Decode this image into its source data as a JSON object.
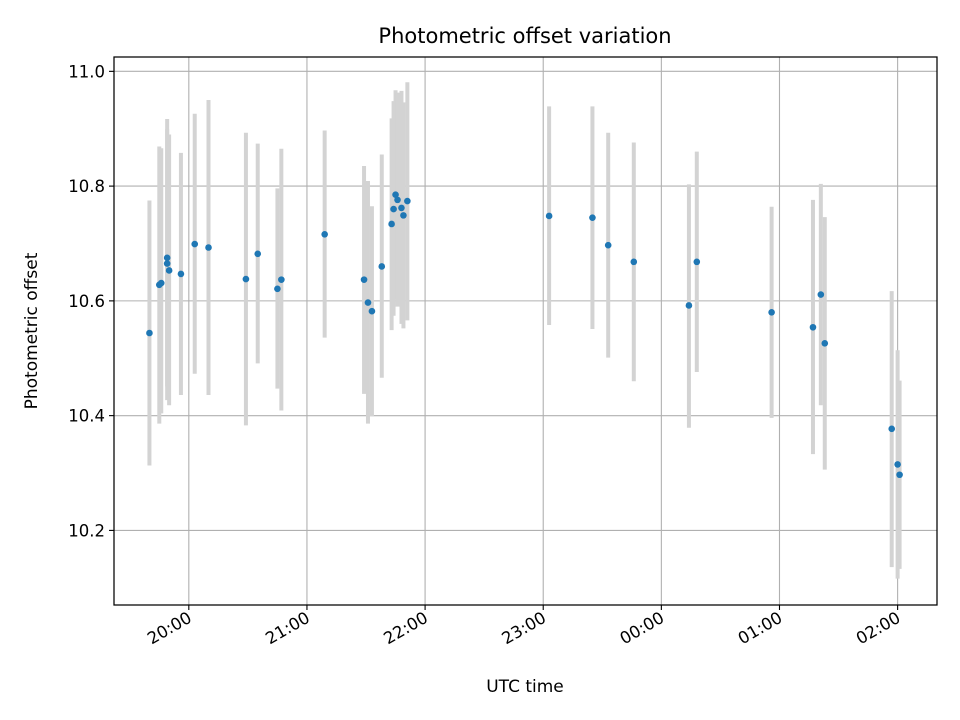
{
  "chart_data": {
    "type": "scatter",
    "title": "Photometric offset variation",
    "xlabel": "UTC time",
    "ylabel": "Photometric offset",
    "x_axis": {
      "kind": "time",
      "start": "2023-01-01T19:22",
      "end": "2023-01-02T02:20"
    },
    "ylim": [
      10.07,
      11.025
    ],
    "grid": true,
    "x_ticks": [
      {
        "t": "2023-01-01T20:00",
        "label": "20:00"
      },
      {
        "t": "2023-01-01T21:00",
        "label": "21:00"
      },
      {
        "t": "2023-01-01T22:00",
        "label": "22:00"
      },
      {
        "t": "2023-01-01T23:00",
        "label": "23:00"
      },
      {
        "t": "2023-01-02T00:00",
        "label": "00:00"
      },
      {
        "t": "2023-01-02T01:00",
        "label": "01:00"
      },
      {
        "t": "2023-01-02T02:00",
        "label": "02:00"
      }
    ],
    "y_ticks": [
      {
        "v": 10.2,
        "label": "10.2"
      },
      {
        "v": 10.4,
        "label": "10.4"
      },
      {
        "v": 10.6,
        "label": "10.6"
      },
      {
        "v": 10.8,
        "label": "10.8"
      },
      {
        "v": 11.0,
        "label": "11.0"
      }
    ],
    "marker_color": "#1f77b4",
    "errorbar_color": "#d3d3d3",
    "points": [
      {
        "t": "2023-01-01T19:40",
        "y": 10.544,
        "lo": 10.313,
        "hi": 10.775
      },
      {
        "t": "2023-01-01T19:45",
        "y": 10.628,
        "lo": 10.386,
        "hi": 10.869
      },
      {
        "t": "2023-01-01T19:46",
        "y": 10.631,
        "lo": 10.404,
        "hi": 10.866
      },
      {
        "t": "2023-01-01T19:49",
        "y": 10.665,
        "lo": 10.427,
        "hi": 10.899
      },
      {
        "t": "2023-01-01T19:49",
        "y": 10.675,
        "lo": 10.451,
        "hi": 10.917
      },
      {
        "t": "2023-01-01T19:50",
        "y": 10.653,
        "lo": 10.418,
        "hi": 10.89
      },
      {
        "t": "2023-01-01T19:56",
        "y": 10.647,
        "lo": 10.436,
        "hi": 10.858
      },
      {
        "t": "2023-01-01T20:03",
        "y": 10.699,
        "lo": 10.473,
        "hi": 10.926
      },
      {
        "t": "2023-01-01T20:10",
        "y": 10.693,
        "lo": 10.436,
        "hi": 10.95
      },
      {
        "t": "2023-01-01T20:29",
        "y": 10.638,
        "lo": 10.383,
        "hi": 10.893
      },
      {
        "t": "2023-01-01T20:35",
        "y": 10.682,
        "lo": 10.491,
        "hi": 10.874
      },
      {
        "t": "2023-01-01T20:45",
        "y": 10.621,
        "lo": 10.447,
        "hi": 10.796
      },
      {
        "t": "2023-01-01T20:47",
        "y": 10.637,
        "lo": 10.409,
        "hi": 10.865
      },
      {
        "t": "2023-01-01T21:09",
        "y": 10.716,
        "lo": 10.536,
        "hi": 10.897
      },
      {
        "t": "2023-01-01T21:29",
        "y": 10.637,
        "lo": 10.438,
        "hi": 10.835
      },
      {
        "t": "2023-01-01T21:31",
        "y": 10.597,
        "lo": 10.386,
        "hi": 10.809
      },
      {
        "t": "2023-01-01T21:33",
        "y": 10.582,
        "lo": 10.399,
        "hi": 10.765
      },
      {
        "t": "2023-01-01T21:38",
        "y": 10.66,
        "lo": 10.466,
        "hi": 10.855
      },
      {
        "t": "2023-01-01T21:43",
        "y": 10.734,
        "lo": 10.549,
        "hi": 10.918
      },
      {
        "t": "2023-01-01T21:44",
        "y": 10.76,
        "lo": 10.574,
        "hi": 10.948
      },
      {
        "t": "2023-01-01T21:45",
        "y": 10.785,
        "lo": 10.603,
        "hi": 10.967
      },
      {
        "t": "2023-01-01T21:46",
        "y": 10.776,
        "lo": 10.59,
        "hi": 10.963
      },
      {
        "t": "2023-01-01T21:48",
        "y": 10.762,
        "lo": 10.56,
        "hi": 10.966
      },
      {
        "t": "2023-01-01T21:49",
        "y": 10.749,
        "lo": 10.552,
        "hi": 10.946
      },
      {
        "t": "2023-01-01T21:51",
        "y": 10.774,
        "lo": 10.566,
        "hi": 10.981
      },
      {
        "t": "2023-01-01T23:03",
        "y": 10.748,
        "lo": 10.558,
        "hi": 10.939
      },
      {
        "t": "2023-01-01T23:25",
        "y": 10.745,
        "lo": 10.551,
        "hi": 10.939
      },
      {
        "t": "2023-01-01T23:33",
        "y": 10.697,
        "lo": 10.501,
        "hi": 10.893
      },
      {
        "t": "2023-01-01T23:46",
        "y": 10.668,
        "lo": 10.46,
        "hi": 10.876
      },
      {
        "t": "2023-01-02T00:14",
        "y": 10.592,
        "lo": 10.379,
        "hi": 10.803
      },
      {
        "t": "2023-01-02T00:18",
        "y": 10.668,
        "lo": 10.476,
        "hi": 10.86
      },
      {
        "t": "2023-01-02T00:56",
        "y": 10.58,
        "lo": 10.396,
        "hi": 10.764
      },
      {
        "t": "2023-01-02T01:17",
        "y": 10.554,
        "lo": 10.333,
        "hi": 10.776
      },
      {
        "t": "2023-01-02T01:21",
        "y": 10.611,
        "lo": 10.418,
        "hi": 10.804
      },
      {
        "t": "2023-01-02T01:23",
        "y": 10.526,
        "lo": 10.306,
        "hi": 10.746
      },
      {
        "t": "2023-01-02T01:57",
        "y": 10.377,
        "lo": 10.136,
        "hi": 10.617
      },
      {
        "t": "2023-01-02T02:00",
        "y": 10.315,
        "lo": 10.116,
        "hi": 10.514
      },
      {
        "t": "2023-01-02T02:01",
        "y": 10.297,
        "lo": 10.133,
        "hi": 10.461
      }
    ]
  }
}
